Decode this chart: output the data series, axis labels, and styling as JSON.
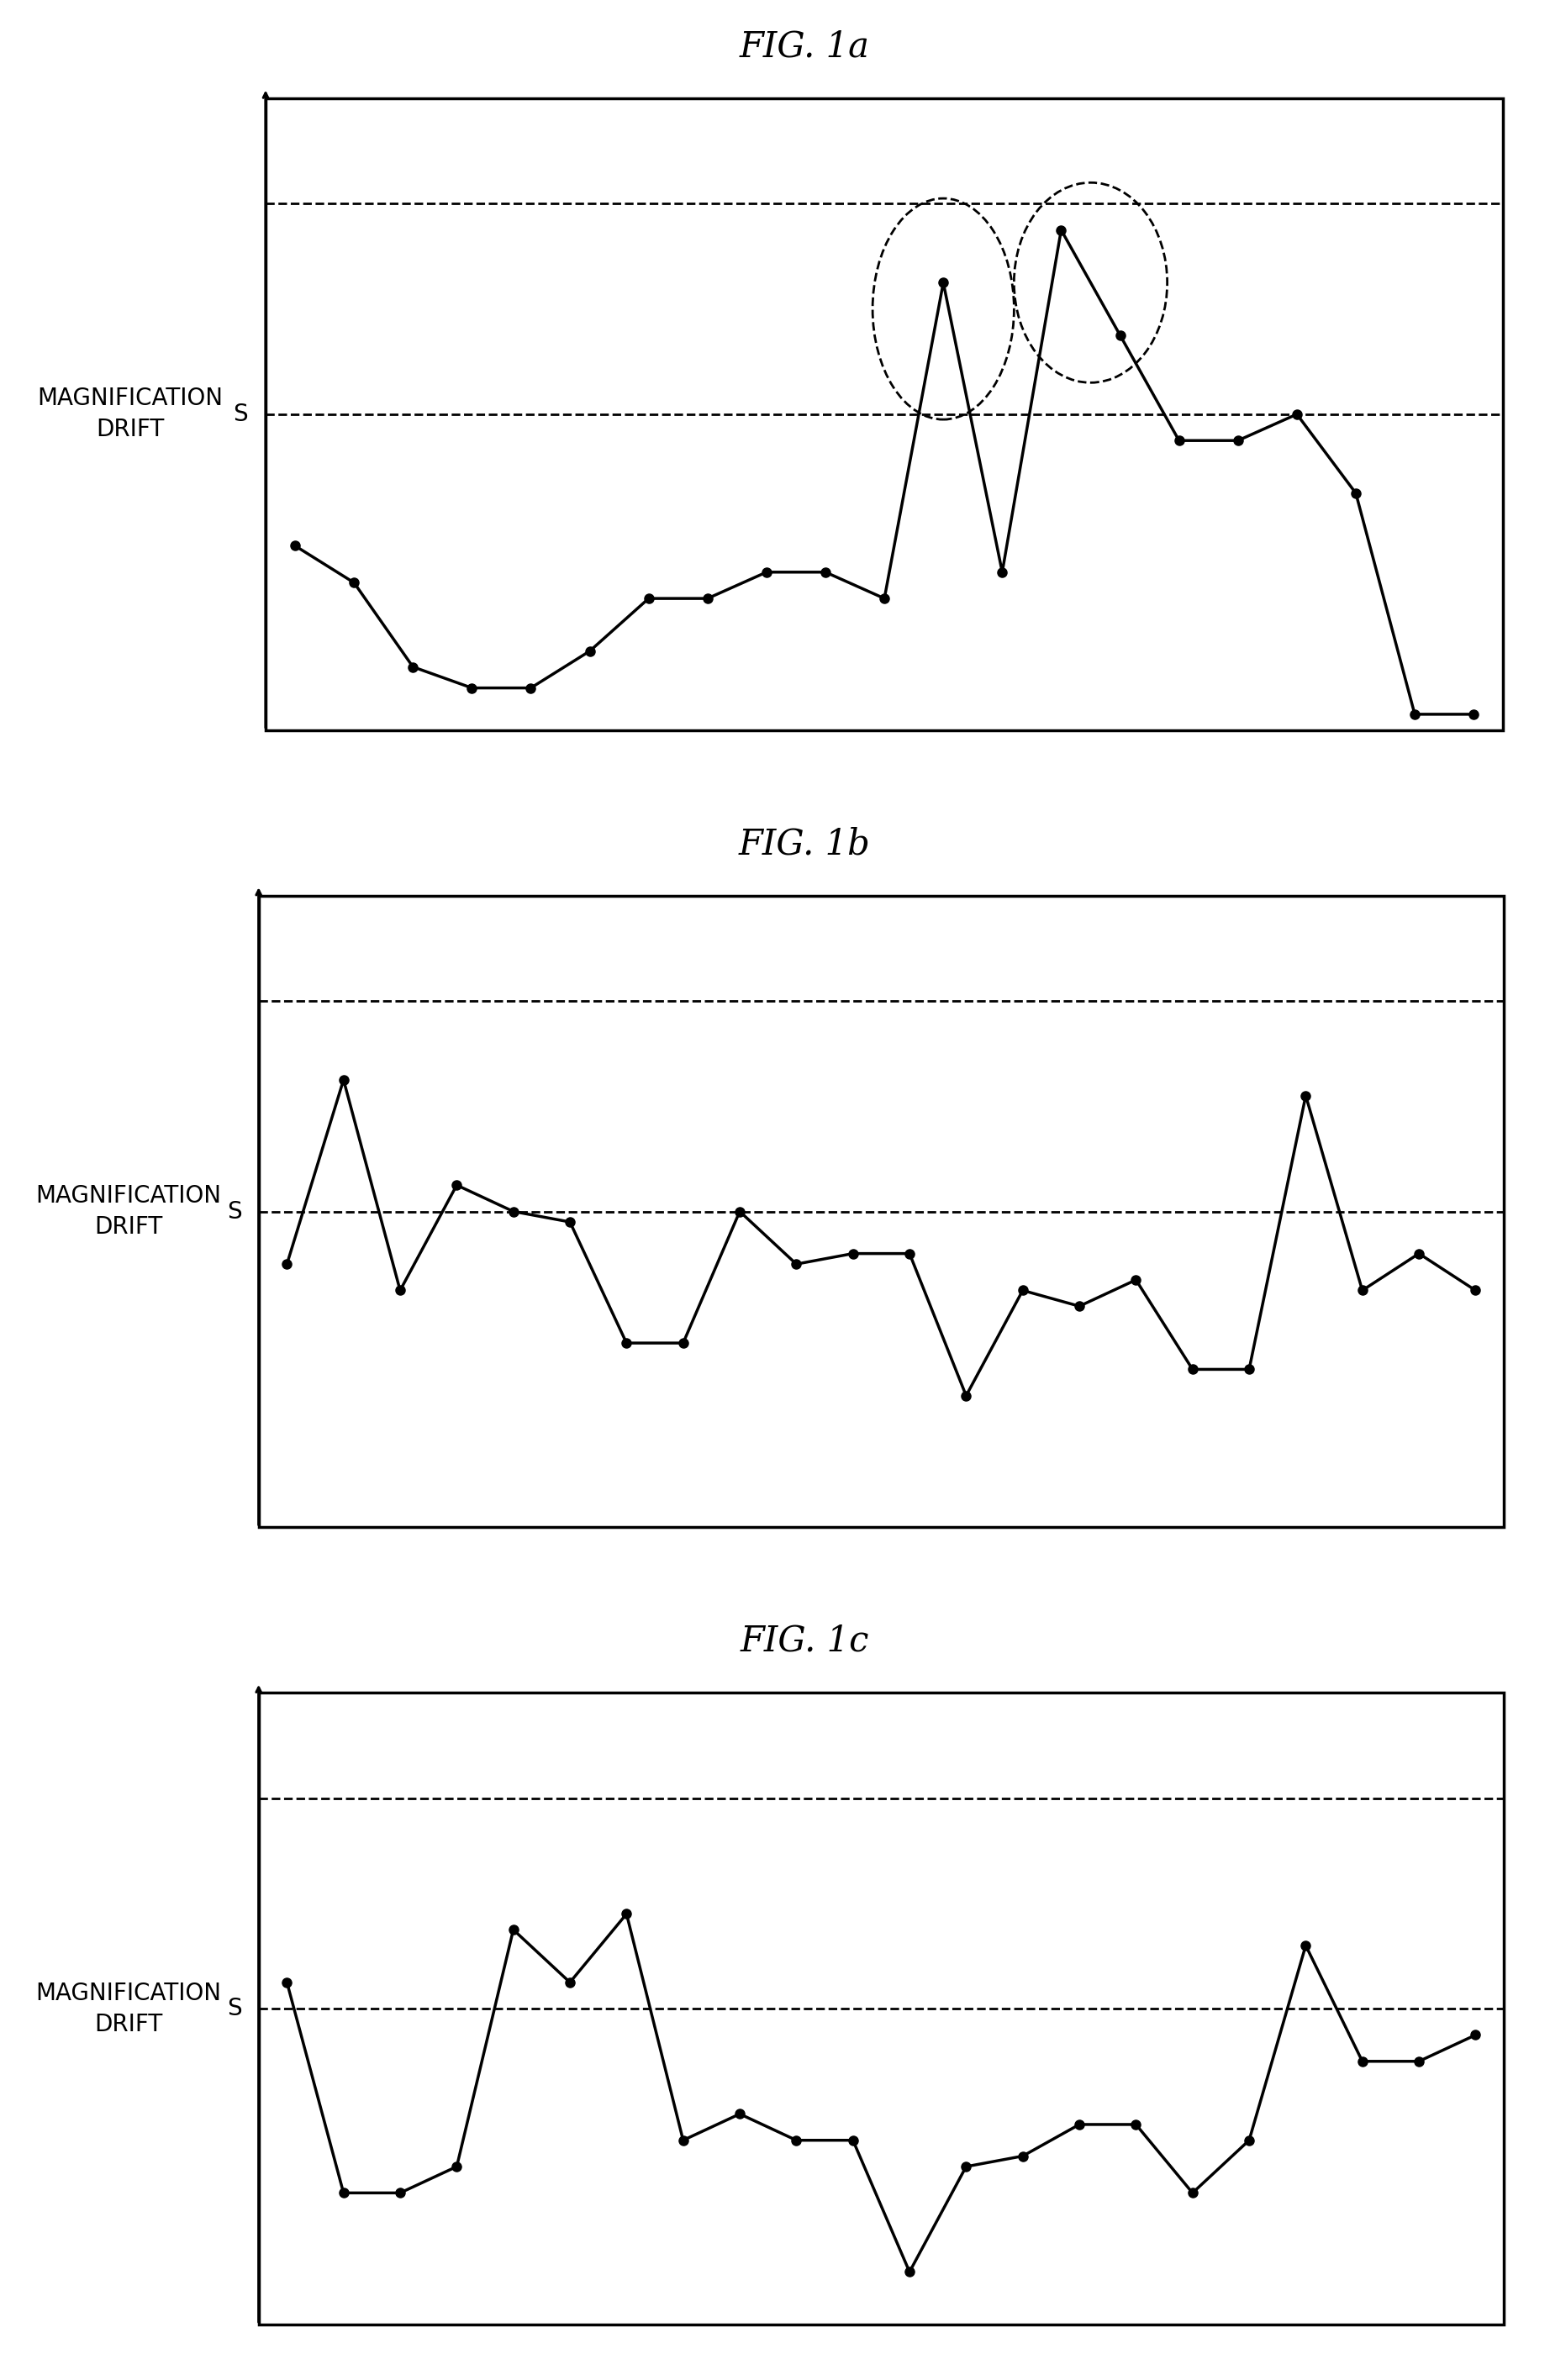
{
  "fig1a_title": "FIG. 1a",
  "fig1b_title": "FIG. 1b",
  "fig1c_title": "FIG. 1c",
  "ylabel": "MAGNIFICATION\nDRIFT",
  "s_label": "S",
  "fig1a_y": [
    3.5,
    2.8,
    1.2,
    0.8,
    0.8,
    1.5,
    2.5,
    2.5,
    3.0,
    3.0,
    2.5,
    8.5,
    3.0,
    9.5,
    7.5,
    5.5,
    5.5,
    6.0,
    4.5,
    0.3,
    0.3
  ],
  "fig1b_y": [
    5.0,
    8.5,
    4.5,
    6.5,
    6.0,
    5.8,
    3.5,
    3.5,
    6.0,
    5.0,
    5.2,
    5.2,
    2.5,
    4.5,
    4.2,
    4.7,
    3.0,
    3.0,
    8.2,
    4.5,
    5.2,
    4.5
  ],
  "fig1c_y": [
    6.5,
    2.5,
    2.5,
    3.0,
    7.5,
    6.5,
    7.8,
    3.5,
    4.0,
    3.5,
    3.5,
    1.0,
    3.0,
    3.2,
    3.8,
    3.8,
    2.5,
    3.5,
    7.2,
    5.0,
    5.0,
    5.5
  ],
  "ylim": [
    0,
    12
  ],
  "s_line": 6.0,
  "upper_dashed": 10.0,
  "background": "#ffffff",
  "line_color": "#000000",
  "title_fontsize": 30,
  "label_fontsize": 20,
  "s_fontsize": 20,
  "fig1a_circles": [
    [
      11,
      8.0,
      2.4,
      4.2
    ],
    [
      13.5,
      8.5,
      2.6,
      3.8
    ]
  ]
}
